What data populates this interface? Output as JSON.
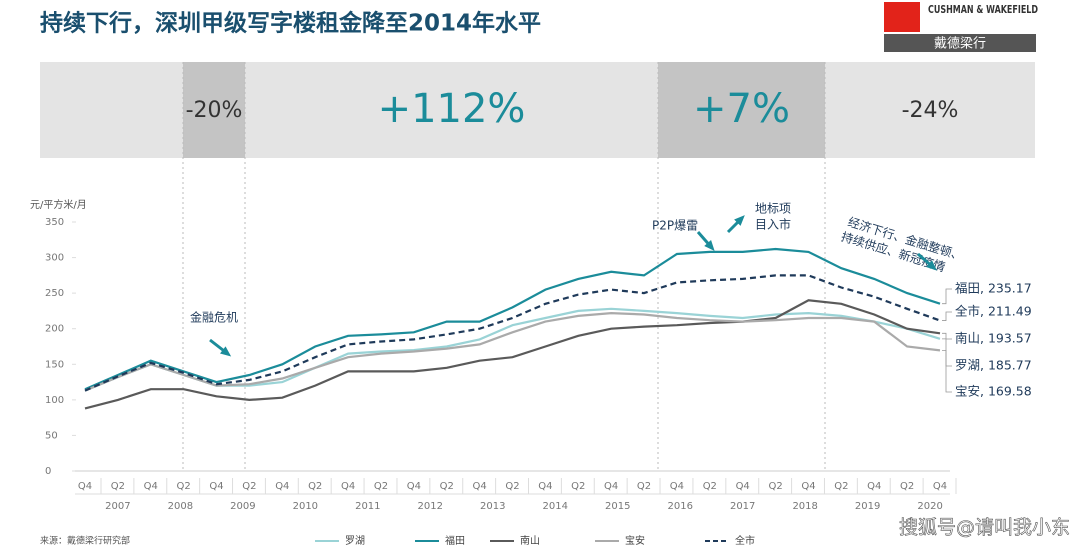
{
  "title": "持续下行，深圳甲级写字楼租金降至2014年水平",
  "logo": {
    "name": "CUSHMAN & WAKEFIELD",
    "cn": "戴德梁行"
  },
  "periods": [
    {
      "label": "-20%"
    },
    {
      "label": "+112%"
    },
    {
      "label": "+7%"
    },
    {
      "label": "-24%"
    }
  ],
  "source": "来源：戴德梁行研究部",
  "watermark": "搜狐号@请叫我小东",
  "chart_data": {
    "type": "line",
    "y_label": "元/平方米/月",
    "categories": [
      "Q4",
      "Q2",
      "Q4",
      "Q2",
      "Q4",
      "Q2",
      "Q4",
      "Q2",
      "Q4",
      "Q2",
      "Q4",
      "Q2",
      "Q4",
      "Q2",
      "Q4",
      "Q2",
      "Q4",
      "Q2",
      "Q4",
      "Q2",
      "Q4",
      "Q2",
      "Q4",
      "Q2",
      "Q4",
      "Q2",
      "Q4"
    ],
    "years": [
      "2007",
      "2008",
      "2009",
      "2010",
      "2011",
      "2012",
      "2013",
      "2014",
      "2015",
      "2016",
      "2017",
      "2018",
      "2019",
      "2020"
    ],
    "ylim": [
      0,
      350
    ],
    "yticks": [
      0,
      50,
      100,
      150,
      200,
      250,
      300,
      350
    ],
    "annotations": [
      [
        "金融危机"
      ],
      [
        "P2P爆雷"
      ],
      [
        "地标项",
        "目入市"
      ],
      [
        "经济下行、金融整顿、",
        "持续供应、新冠疫情"
      ]
    ],
    "series": [
      {
        "name": "罗湖",
        "color": "#9ad3d6",
        "end_label": "罗湖, 185.77",
        "values": [
          113,
          132,
          150,
          135,
          120,
          120,
          125,
          145,
          165,
          168,
          170,
          175,
          185,
          205,
          215,
          225,
          228,
          225,
          222,
          218,
          215,
          220,
          222,
          218,
          210,
          200,
          185.77
        ]
      },
      {
        "name": "福田",
        "color": "#1b8c9a",
        "end_label": "福田, 235.17",
        "values": [
          115,
          135,
          155,
          140,
          125,
          135,
          150,
          175,
          190,
          192,
          195,
          210,
          210,
          230,
          255,
          270,
          280,
          275,
          305,
          308,
          308,
          312,
          308,
          285,
          270,
          250,
          235.17
        ]
      },
      {
        "name": "南山",
        "color": "#5a5a5a",
        "end_label": "南山, 193.57",
        "values": [
          88,
          100,
          115,
          115,
          105,
          100,
          103,
          120,
          140,
          140,
          140,
          145,
          155,
          160,
          175,
          190,
          200,
          203,
          205,
          208,
          210,
          215,
          240,
          235,
          220,
          200,
          193.57
        ]
      },
      {
        "name": "宝安",
        "color": "#aaaaaa",
        "end_label": "宝安, 169.58",
        "values": [
          113,
          132,
          150,
          135,
          120,
          122,
          130,
          145,
          160,
          165,
          168,
          172,
          178,
          195,
          210,
          218,
          222,
          220,
          215,
          212,
          210,
          212,
          215,
          215,
          210,
          175,
          169.58
        ]
      },
      {
        "name": "全市",
        "color": "#1f3a5a",
        "dashed": true,
        "end_label": "全市, 211.49",
        "values": [
          113,
          133,
          152,
          138,
          122,
          128,
          140,
          160,
          178,
          182,
          185,
          192,
          200,
          215,
          235,
          248,
          255,
          250,
          265,
          268,
          270,
          275,
          275,
          258,
          245,
          228,
          211.49
        ]
      }
    ]
  }
}
